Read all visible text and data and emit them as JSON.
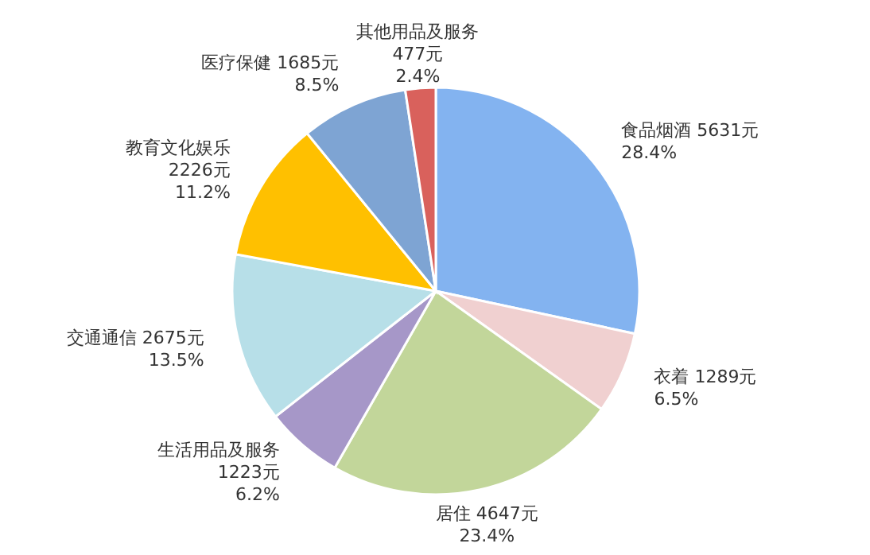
{
  "chart_data": {
    "type": "pie",
    "categories": [
      "食品烟酒",
      "衣着",
      "居住",
      "生活用品及服务",
      "交通通信",
      "教育文化娱乐",
      "医疗保健",
      "其他用品及服务"
    ],
    "values": [
      5631,
      1289,
      4647,
      1223,
      2675,
      2226,
      1685,
      477
    ],
    "value_labels": [
      "5631元\n28.4%",
      "1289元\n6.5%",
      "4647元\n23.4%",
      "1223元\n6.2%",
      "2675元\n13.5%",
      "2226元\n11.2%",
      "1685元\n8.5%",
      "477元\n2.4%"
    ],
    "colors": [
      "#83b3f0",
      "#f0d0d0",
      "#c2d69a",
      "#a697c8",
      "#b7dfe8",
      "#ffc000",
      "#7ea4d3",
      "#d9615c"
    ]
  }
}
